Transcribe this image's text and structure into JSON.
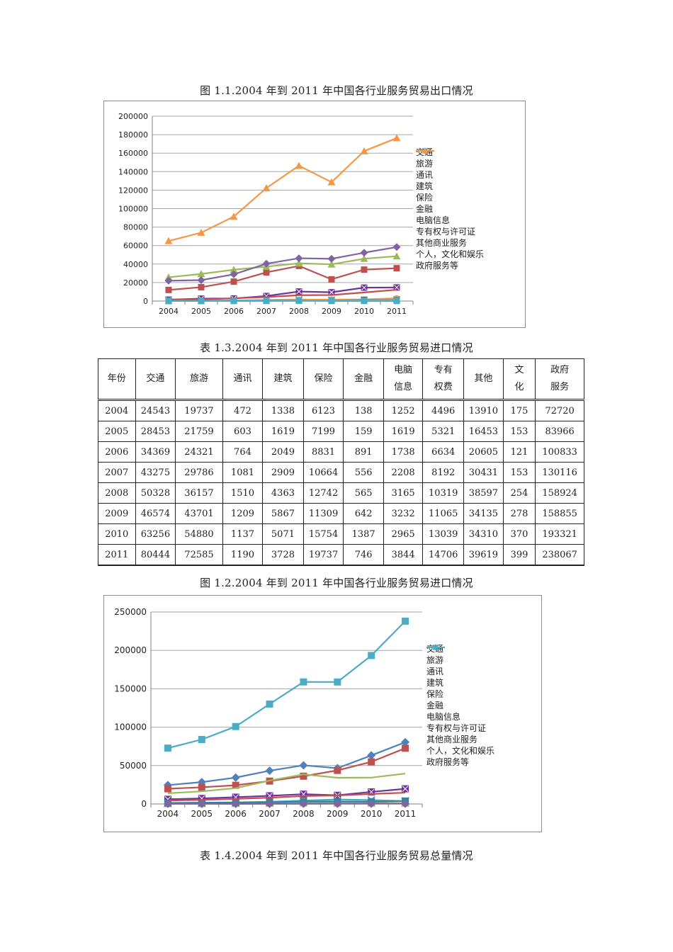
{
  "captions": {
    "fig1": "图 1.1.2004 年到 2011 年中国各行业服务贸易出口情况",
    "table": "表 1.3.2004 年到 2011 年中国各行业服务贸易进口情况",
    "fig2": "图 1.2.2004 年到 2011 年中国各行业服务贸易进口情况",
    "table_next": "表 1.4.2004 年到 2011 年中国各行业服务贸易总量情况"
  },
  "table": {
    "headers": [
      {
        "l1": "年份",
        "l2": ""
      },
      {
        "l1": "交通",
        "l2": ""
      },
      {
        "l1": "旅游",
        "l2": ""
      },
      {
        "l1": "通讯",
        "l2": ""
      },
      {
        "l1": "建筑",
        "l2": ""
      },
      {
        "l1": "保险",
        "l2": ""
      },
      {
        "l1": "金融",
        "l2": ""
      },
      {
        "l1": "电脑",
        "l2": "信息"
      },
      {
        "l1": "专有",
        "l2": "权费"
      },
      {
        "l1": "其他",
        "l2": ""
      },
      {
        "l1": "文",
        "l2": "化"
      },
      {
        "l1": "政府",
        "l2": "服务"
      }
    ],
    "rows": [
      [
        "2004",
        "24543",
        "19737",
        "472",
        "1338",
        "6123",
        "138",
        "1252",
        "4496",
        "13910",
        "175",
        "72720"
      ],
      [
        "2005",
        "28453",
        "21759",
        "603",
        "1619",
        "7199",
        "159",
        "1619",
        "5321",
        "16453",
        "153",
        "83966"
      ],
      [
        "2006",
        "34369",
        "24321",
        "764",
        "2049",
        "8831",
        "891",
        "1738",
        "6634",
        "20605",
        "121",
        "100833"
      ],
      [
        "2007",
        "43275",
        "29786",
        "1081",
        "2909",
        "10664",
        "556",
        "2208",
        "8192",
        "30431",
        "153",
        "130116"
      ],
      [
        "2008",
        "50328",
        "36157",
        "1510",
        "4363",
        "12742",
        "565",
        "3165",
        "10319",
        "38597",
        "254",
        "158924"
      ],
      [
        "2009",
        "46574",
        "43701",
        "1209",
        "5867",
        "11309",
        "642",
        "3232",
        "11065",
        "34135",
        "278",
        "158855"
      ],
      [
        "2010",
        "63256",
        "54880",
        "1137",
        "5071",
        "15754",
        "1387",
        "2965",
        "13039",
        "34310",
        "370",
        "193321"
      ],
      [
        "2011",
        "80444",
        "72585",
        "1190",
        "3728",
        "19737",
        "746",
        "3844",
        "14706",
        "39619",
        "399",
        "238067"
      ]
    ]
  },
  "chart_data": [
    {
      "type": "line",
      "title": "图 1.1.2004 年到 2011 年中国各行业服务贸易出口情况",
      "categories": [
        "2004",
        "2005",
        "2006",
        "2007",
        "2008",
        "2009",
        "2010",
        "2011"
      ],
      "ylim": [
        0,
        200000
      ],
      "yticks": [
        0,
        20000,
        40000,
        60000,
        80000,
        100000,
        120000,
        140000,
        160000,
        180000,
        200000
      ],
      "grid": true,
      "legend_position": "right",
      "series": [
        {
          "name": "交通",
          "color": "#c0504d",
          "marker": "square",
          "values": [
            12000,
            15000,
            21000,
            31000,
            38000,
            23500,
            34000,
            35500
          ]
        },
        {
          "name": "旅游",
          "color": "#9bbb59",
          "marker": "triangle",
          "values": [
            25700,
            29300,
            33900,
            37200,
            40800,
            39700,
            45800,
            48500
          ]
        },
        {
          "name": "通讯",
          "color": "#4bacc6",
          "marker": "x",
          "values": [
            400,
            500,
            700,
            1200,
            1600,
            1200,
            1200,
            1700
          ]
        },
        {
          "name": "建筑",
          "color": "#7030a0",
          "marker": "xbox",
          "values": [
            1500,
            2600,
            2800,
            5400,
            10300,
            9500,
            14500,
            14700
          ]
        },
        {
          "name": "保险",
          "color": "#f79646",
          "marker": "circle",
          "values": [
            400,
            500,
            500,
            900,
            1400,
            1600,
            1700,
            3000
          ]
        },
        {
          "name": "金融",
          "color": "#31859c",
          "marker": "square",
          "values": [
            100,
            100,
            200,
            200,
            300,
            400,
            1300,
            800
          ]
        },
        {
          "name": "电脑信息",
          "color": "#c0504d",
          "marker": "none",
          "values": [
            1600,
            1800,
            3000,
            4300,
            6300,
            6500,
            9300,
            12200
          ]
        },
        {
          "name": "专有权与许可证",
          "color": "#9bbb59",
          "marker": "none",
          "values": [
            200,
            200,
            200,
            300,
            600,
            400,
            800,
            700
          ]
        },
        {
          "name": "其他商业服务",
          "color": "#8064a2",
          "marker": "diamond",
          "values": [
            22000,
            22600,
            28900,
            40400,
            46300,
            45700,
            52300,
            58400
          ]
        },
        {
          "name": "个人，文化和娱乐",
          "color": "#4bacc6",
          "marker": "square",
          "values": [
            40,
            130,
            140,
            320,
            420,
            100,
            120,
            120
          ]
        },
        {
          "name": "政府服务等",
          "color": "#f79646",
          "marker": "triangle",
          "values": [
            65000,
            74000,
            91400,
            122200,
            146400,
            128600,
            162200,
            176300
          ]
        }
      ]
    },
    {
      "type": "line",
      "title": "图 1.2.2004 年到 2011 年中国各行业服务贸易进口情况",
      "categories": [
        "2004",
        "2005",
        "2006",
        "2007",
        "2008",
        "2009",
        "2010",
        "2011"
      ],
      "ylim": [
        0,
        250000
      ],
      "yticks": [
        0,
        50000,
        100000,
        150000,
        200000,
        250000
      ],
      "grid": true,
      "legend_position": "right",
      "series": [
        {
          "name": "交通",
          "color": "#4f81bd",
          "marker": "diamond",
          "values": [
            24543,
            28453,
            34369,
            43275,
            50328,
            46574,
            63256,
            80444
          ]
        },
        {
          "name": "旅游",
          "color": "#c0504d",
          "marker": "square",
          "values": [
            19737,
            21759,
            24321,
            29786,
            36157,
            43701,
            54880,
            72585
          ]
        },
        {
          "name": "通讯",
          "color": "#9bbb59",
          "marker": "triangle",
          "values": [
            472,
            603,
            764,
            1081,
            1510,
            1209,
            1137,
            1190
          ]
        },
        {
          "name": "建筑",
          "color": "#4bacc6",
          "marker": "x",
          "values": [
            1338,
            1619,
            2049,
            2909,
            4363,
            5867,
            5071,
            3728
          ]
        },
        {
          "name": "保险",
          "color": "#7030a0",
          "marker": "xbox",
          "values": [
            6123,
            7199,
            8831,
            10664,
            12742,
            11309,
            15754,
            19737
          ]
        },
        {
          "name": "金融",
          "color": "#f79646",
          "marker": "circle",
          "values": [
            138,
            159,
            891,
            556,
            565,
            642,
            1387,
            746
          ]
        },
        {
          "name": "电脑信息",
          "color": "#31859c",
          "marker": "square",
          "values": [
            1252,
            1619,
            1738,
            2208,
            3165,
            3232,
            2965,
            3844
          ]
        },
        {
          "name": "专有权与许可证",
          "color": "#c0504d",
          "marker": "none",
          "values": [
            4496,
            5321,
            6634,
            8192,
            10319,
            11065,
            13039,
            14706
          ]
        },
        {
          "name": "其他商业服务",
          "color": "#9bbb59",
          "marker": "none",
          "values": [
            13910,
            16453,
            20605,
            30431,
            38597,
            34135,
            34310,
            39619
          ]
        },
        {
          "name": "个人，文化和娱乐",
          "color": "#8064a2",
          "marker": "diamond",
          "values": [
            175,
            153,
            121,
            153,
            254,
            278,
            370,
            399
          ]
        },
        {
          "name": "政府服务等",
          "color": "#4bacc6",
          "marker": "square",
          "values": [
            72720,
            83966,
            100833,
            130116,
            158924,
            158855,
            193321,
            238067
          ]
        }
      ]
    }
  ]
}
